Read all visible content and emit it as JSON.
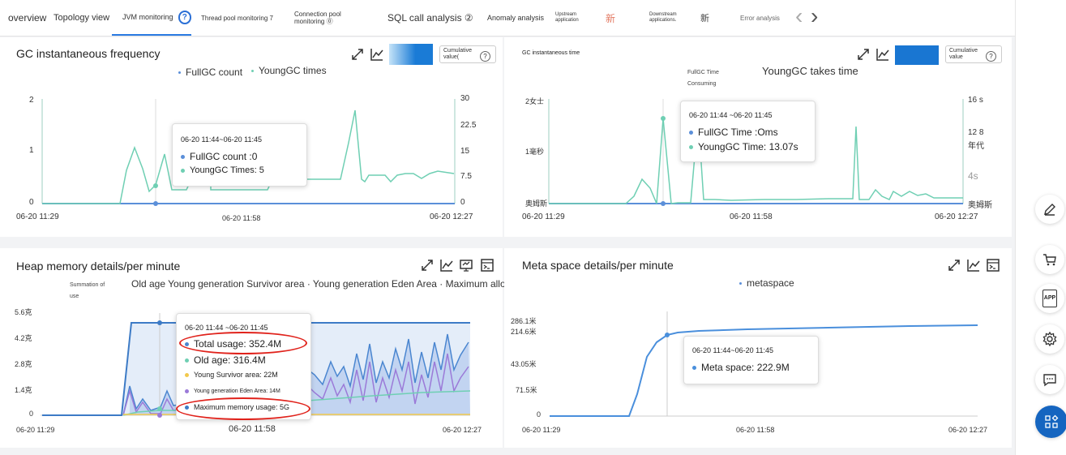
{
  "tabs": {
    "overview": "overview",
    "topology": "Topology view",
    "jvm": "JVM monitoring",
    "jvm_help": "?",
    "thread_pool": "Thread pool monitoring 7",
    "conn_pool_1": "Connection pool",
    "conn_pool_2": "monitoring ⓪",
    "sql": "SQL call analysis ②",
    "anomaly": "Anomaly analysis",
    "upstream_1": "Upstream",
    "upstream_2": "application",
    "upstream_new": "新",
    "downstream_1": "Downstream",
    "downstream_2": "applications.",
    "downstream_new": "新",
    "error": "Error analysis",
    "prev": "‹",
    "next": "›"
  },
  "gc_freq": {
    "title": "GC instantaneous frequency",
    "legend_full": "FullGC count",
    "legend_young": "YoungGC times",
    "cumulative_1": "Cumulative",
    "cumulative_2": "value(",
    "y_left": [
      "2",
      "1",
      "0"
    ],
    "y_right": [
      "30",
      "22.5",
      "15",
      "7.5",
      "0"
    ],
    "x": [
      "06-20 11:29",
      "06-20 11:58",
      "06-20 12:27"
    ],
    "tooltip": {
      "time": "06-20 11:44~06-20 11:45",
      "line1": "FullGC count :0",
      "line2": "YoungGC Times: 5"
    }
  },
  "gc_time": {
    "title": "GC instantaneous time",
    "legend_full_1": "FullGC Time",
    "legend_full_2": "Consuming",
    "legend_young": "YoungGC takes time",
    "cumulative_1": "Cumulative",
    "cumulative_2": "value",
    "y_left": [
      "2女士",
      "1毫秒",
      "奥姆斯"
    ],
    "y_right": [
      "16 s",
      "12 8",
      "年代",
      "4s",
      "奥姆斯"
    ],
    "x": [
      "06-20 11:29",
      "06-20 11:58",
      "06-20 12:27"
    ],
    "tooltip": {
      "time": "06-20 11:44 ~06-20 11:45",
      "line1": "FullGC Time :Oms",
      "line2": "YoungGC Time: 13.07s"
    }
  },
  "heap": {
    "title": "Heap memory details/per minute",
    "legend_sum_1": "Summation of",
    "legend_sum_2": "use",
    "legend_rest": "Old age   Young generation Survivor area · Young generation Eden Area · Maximum allowed memory",
    "y": [
      "5.6克",
      "4.2克",
      "2.8克",
      "1.4克",
      "0"
    ],
    "x": [
      "06-20 11:29",
      "06-20 11:58",
      "06-20 12:27"
    ],
    "tooltip": {
      "time": "06-20 11:44 ~06-20 11:45",
      "total": "Total usage: 352.4M",
      "old": "Old age: 316.4M",
      "survivor": "Young Survivor area: 22M",
      "eden": "Young generation Eden Area: 14M",
      "max": "Maximum memory usage: 5G"
    }
  },
  "meta": {
    "title": "Meta space details/per minute",
    "legend": "metaspace",
    "y": [
      "286.1米",
      "214.6米",
      "43.05米",
      "71.5米",
      "0"
    ],
    "x": [
      "06-20 11:29",
      "06-20 11:58",
      "06-20 12:27"
    ],
    "tooltip": {
      "time": "06-20 11:44~06-20 11:45",
      "line1": "Meta space: 222.9M"
    }
  },
  "colors": {
    "accent": "#2a7ae2",
    "full_gc": "#5b8fd9",
    "young_gc": "#6fcfb3",
    "old_age": "#6fcfb3",
    "survivor": "#f2c94c",
    "eden": "#9b7ad8",
    "total": "#4a86d0",
    "highlight": "#e0221b"
  },
  "sidebar": {
    "icons": [
      "pencil-icon",
      "cart-icon",
      "app-icon",
      "gear-icon",
      "chat-icon",
      "grid-icon"
    ],
    "app_label": "APP"
  }
}
